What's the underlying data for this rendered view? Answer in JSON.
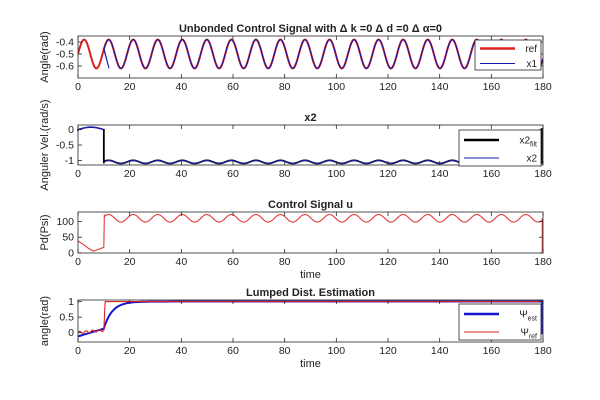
{
  "chart_data": [
    {
      "type": "line",
      "title": "Unbonded Control Signal with Δ k =0 Δ d =0 Δ α=0",
      "xlabel": "",
      "ylabel": "Angle(rad)",
      "xlim": [
        0,
        180
      ],
      "ylim": [
        -0.7,
        -0.35
      ],
      "xticks": [
        0,
        20,
        40,
        60,
        80,
        100,
        120,
        140,
        160,
        180
      ],
      "yticks": [
        -0.4,
        -0.5,
        -0.6
      ],
      "ytick_labels": [
        "-0.4",
        "-0.5",
        "-0.6"
      ],
      "grid": false,
      "legend_position": "top-right",
      "series": [
        {
          "name": "ref",
          "color": "#dd2222",
          "shape": "sine",
          "start": 0,
          "end": 180,
          "center": -0.5,
          "amplitude": 0.12,
          "period": 9.5
        },
        {
          "name": "x1",
          "color": "#1a1aa6",
          "shape": "sine",
          "start": 10,
          "end": 180,
          "center": -0.5,
          "amplitude": 0.12,
          "period": 9.5
        }
      ]
    },
    {
      "type": "line",
      "title": "x2",
      "xlabel": "",
      "ylabel": "Anguler Vel.(rad/s)",
      "xlim": [
        0,
        180
      ],
      "ylim": [
        -1.15,
        0.15
      ],
      "xticks": [
        0,
        20,
        40,
        60,
        80,
        100,
        120,
        140,
        160,
        180
      ],
      "yticks": [
        0,
        -0.5,
        -1
      ],
      "ytick_labels": [
        "0",
        "-0.5",
        "-1"
      ],
      "grid": false,
      "legend_position": "top-right",
      "series": [
        {
          "name": "x2",
          "name_subscript": "filt",
          "color": "#000000",
          "shape": "sine",
          "start": 10,
          "end": 180,
          "center": -1.05,
          "amplitude": 0.05,
          "period": 9.5
        },
        {
          "name": "x2",
          "color": "#1a1aa6",
          "shape": "sine",
          "start": 10,
          "end": 180,
          "center": -1.05,
          "amplitude": 0.05,
          "period": 9.5
        }
      ]
    },
    {
      "type": "line",
      "title": "Control Signal u",
      "xlabel": "time",
      "ylabel": "Pd(Psi)",
      "xlim": [
        0,
        180
      ],
      "ylim": [
        0,
        130
      ],
      "xticks": [
        0,
        20,
        40,
        60,
        80,
        100,
        120,
        140,
        160,
        180
      ],
      "yticks": [
        0,
        50,
        100
      ],
      "ytick_labels": [
        "0",
        "50",
        "100"
      ],
      "grid": false,
      "series": [
        {
          "name": "u",
          "color": "#e23a3a",
          "shape": "sine",
          "start": 10,
          "end": 180,
          "center": 110,
          "amplitude": 12,
          "period": 9.5
        }
      ]
    },
    {
      "type": "line",
      "title": "Lumped Dist. Estimation",
      "xlabel": "time",
      "ylabel": "angle(rad)",
      "xlim": [
        0,
        180
      ],
      "ylim": [
        -0.3,
        1.05
      ],
      "xticks": [
        0,
        20,
        40,
        60,
        80,
        100,
        120,
        140,
        160,
        180
      ],
      "yticks": [
        0,
        0.5,
        1
      ],
      "ytick_labels": [
        "0",
        "0.5",
        "1"
      ],
      "grid": false,
      "legend_position": "right",
      "series": [
        {
          "name": "Ψ",
          "name_subscript": "est",
          "color": "#1515d0",
          "shape": "step",
          "start": 0,
          "end": 180,
          "final": 1.0
        },
        {
          "name": "Ψ",
          "name_subscript": "ref",
          "color": "#dd2222",
          "shape": "step",
          "start": 0,
          "end": 180,
          "final": 1.0
        }
      ]
    }
  ]
}
